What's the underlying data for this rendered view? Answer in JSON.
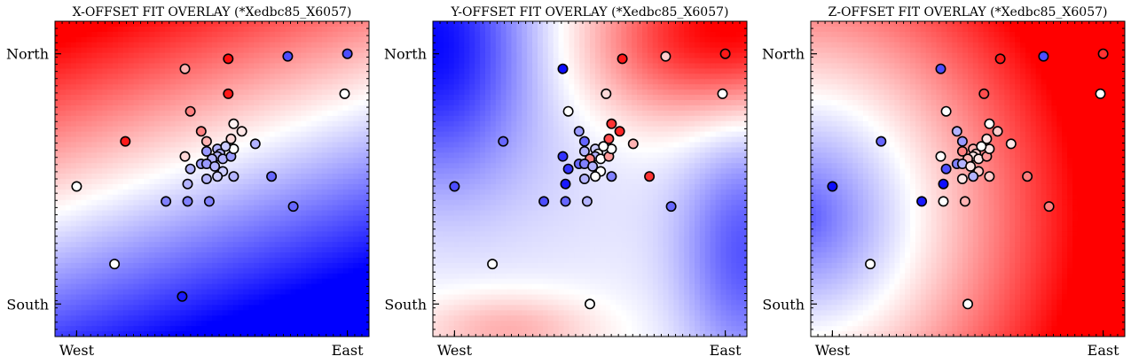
{
  "figure": {
    "titles": [
      "X-OFFSET FIT OVERLAY (*Xedbc85_X6057)",
      "Y-OFFSET FIT OVERLAY (*Xedbc85_X6057)",
      "Z-OFFSET FIT OVERLAY (*Xedbc85_X6057)"
    ]
  },
  "chart_data": [
    {
      "type": "scatter",
      "title": "X-OFFSET FIT OVERLAY (*Xedbc85_X6057)",
      "xlabel": "",
      "ylabel": "",
      "x_ticks": [
        {
          "value": 0.0,
          "label": "West"
        },
        {
          "value": 1.0,
          "label": "East"
        }
      ],
      "y_ticks": [
        {
          "value": 0.0,
          "label": "South"
        },
        {
          "value": 1.0,
          "label": "North"
        }
      ],
      "xlim": [
        -0.08,
        1.08
      ],
      "ylim": [
        -0.13,
        1.13
      ],
      "colormap": [
        "#0000ff",
        "#ffffff",
        "#ff0000"
      ],
      "background_field": {
        "kind": "diagonal",
        "center": 0.7,
        "origin": [
          0.12,
          0.0
        ],
        "axis": [
          -0.35,
          0.9
        ],
        "scale": 0.6,
        "white_band": 0.02
      },
      "points": [
        {
          "x": 0.0,
          "y": 0.47,
          "v": 0.0
        },
        {
          "x": 0.14,
          "y": 0.16,
          "v": 0.0
        },
        {
          "x": 0.18,
          "y": 0.65,
          "v": 0.9
        },
        {
          "x": 0.39,
          "y": 0.03,
          "v": -0.9
        },
        {
          "x": 0.4,
          "y": 0.94,
          "v": 0.3
        },
        {
          "x": 0.56,
          "y": 0.98,
          "v": 0.95
        },
        {
          "x": 0.78,
          "y": 0.99,
          "v": -0.7
        },
        {
          "x": 1.0,
          "y": 1.0,
          "v": -0.7
        },
        {
          "x": 0.99,
          "y": 0.84,
          "v": 0.0
        },
        {
          "x": 0.56,
          "y": 0.84,
          "v": 0.9
        },
        {
          "x": 0.42,
          "y": 0.77,
          "v": 0.5
        },
        {
          "x": 0.46,
          "y": 0.69,
          "v": 0.5
        },
        {
          "x": 0.48,
          "y": 0.65,
          "v": 0.3
        },
        {
          "x": 0.58,
          "y": 0.72,
          "v": 0.05
        },
        {
          "x": 0.61,
          "y": 0.69,
          "v": 0.1
        },
        {
          "x": 0.57,
          "y": 0.66,
          "v": 0.15
        },
        {
          "x": 0.66,
          "y": 0.64,
          "v": -0.3
        },
        {
          "x": 0.4,
          "y": 0.59,
          "v": 0.15
        },
        {
          "x": 0.48,
          "y": 0.61,
          "v": -0.4
        },
        {
          "x": 0.52,
          "y": 0.62,
          "v": -0.3
        },
        {
          "x": 0.53,
          "y": 0.6,
          "v": -0.3
        },
        {
          "x": 0.52,
          "y": 0.59,
          "v": -0.3
        },
        {
          "x": 0.5,
          "y": 0.58,
          "v": -0.3
        },
        {
          "x": 0.54,
          "y": 0.58,
          "v": -0.3
        },
        {
          "x": 0.57,
          "y": 0.59,
          "v": -0.4
        },
        {
          "x": 0.58,
          "y": 0.62,
          "v": 0.0
        },
        {
          "x": 0.55,
          "y": 0.63,
          "v": -0.2
        },
        {
          "x": 0.46,
          "y": 0.56,
          "v": -0.4
        },
        {
          "x": 0.48,
          "y": 0.56,
          "v": -0.4
        },
        {
          "x": 0.42,
          "y": 0.54,
          "v": -0.3
        },
        {
          "x": 0.51,
          "y": 0.55,
          "v": -0.3
        },
        {
          "x": 0.54,
          "y": 0.53,
          "v": -0.2
        },
        {
          "x": 0.58,
          "y": 0.51,
          "v": -0.3
        },
        {
          "x": 0.52,
          "y": 0.51,
          "v": -0.2
        },
        {
          "x": 0.48,
          "y": 0.5,
          "v": -0.3
        },
        {
          "x": 0.41,
          "y": 0.48,
          "v": -0.3
        },
        {
          "x": 0.72,
          "y": 0.51,
          "v": -0.6
        },
        {
          "x": 0.8,
          "y": 0.39,
          "v": -0.6
        },
        {
          "x": 0.33,
          "y": 0.41,
          "v": -0.5
        },
        {
          "x": 0.41,
          "y": 0.41,
          "v": -0.5
        },
        {
          "x": 0.49,
          "y": 0.41,
          "v": -0.5
        }
      ]
    },
    {
      "type": "scatter",
      "title": "Y-OFFSET FIT OVERLAY (*Xedbc85_X6057)",
      "xlabel": "",
      "ylabel": "",
      "x_ticks": [
        {
          "value": 0.0,
          "label": "West"
        },
        {
          "value": 1.0,
          "label": "East"
        }
      ],
      "y_ticks": [
        {
          "value": 0.0,
          "label": "South"
        },
        {
          "value": 1.0,
          "label": "North"
        }
      ],
      "xlim": [
        -0.08,
        1.08
      ],
      "ylim": [
        -0.13,
        1.13
      ],
      "colormap": [
        "#0000ff",
        "#ffffff",
        "#ff0000"
      ],
      "background_field": {
        "kind": "y-offset"
      },
      "points": [
        {
          "x": 0.0,
          "y": 0.47,
          "v": -0.7
        },
        {
          "x": 0.14,
          "y": 0.16,
          "v": 0.0
        },
        {
          "x": 0.18,
          "y": 0.65,
          "v": -0.6
        },
        {
          "x": 0.5,
          "y": 0.0,
          "v": 0.0
        },
        {
          "x": 0.4,
          "y": 0.94,
          "v": -0.95
        },
        {
          "x": 0.62,
          "y": 0.98,
          "v": 0.9
        },
        {
          "x": 0.78,
          "y": 0.99,
          "v": 0.2
        },
        {
          "x": 1.0,
          "y": 1.0,
          "v": 0.9
        },
        {
          "x": 0.99,
          "y": 0.84,
          "v": 0.0
        },
        {
          "x": 0.56,
          "y": 0.84,
          "v": 0.15
        },
        {
          "x": 0.42,
          "y": 0.77,
          "v": 0.0
        },
        {
          "x": 0.46,
          "y": 0.69,
          "v": -0.4
        },
        {
          "x": 0.48,
          "y": 0.65,
          "v": -0.6
        },
        {
          "x": 0.58,
          "y": 0.72,
          "v": 0.8
        },
        {
          "x": 0.61,
          "y": 0.69,
          "v": 0.85
        },
        {
          "x": 0.57,
          "y": 0.66,
          "v": 0.7
        },
        {
          "x": 0.66,
          "y": 0.64,
          "v": 0.3
        },
        {
          "x": 0.4,
          "y": 0.59,
          "v": -0.8
        },
        {
          "x": 0.48,
          "y": 0.61,
          "v": -0.3
        },
        {
          "x": 0.52,
          "y": 0.62,
          "v": -0.2
        },
        {
          "x": 0.53,
          "y": 0.6,
          "v": 0.0
        },
        {
          "x": 0.52,
          "y": 0.59,
          "v": -0.3
        },
        {
          "x": 0.5,
          "y": 0.58,
          "v": 0.5
        },
        {
          "x": 0.54,
          "y": 0.58,
          "v": 0.0
        },
        {
          "x": 0.57,
          "y": 0.59,
          "v": 0.4
        },
        {
          "x": 0.58,
          "y": 0.62,
          "v": 0.0
        },
        {
          "x": 0.55,
          "y": 0.63,
          "v": 0.0
        },
        {
          "x": 0.46,
          "y": 0.56,
          "v": -0.6
        },
        {
          "x": 0.48,
          "y": 0.56,
          "v": -0.5
        },
        {
          "x": 0.42,
          "y": 0.54,
          "v": -0.8
        },
        {
          "x": 0.51,
          "y": 0.55,
          "v": -0.3
        },
        {
          "x": 0.54,
          "y": 0.53,
          "v": 0.0
        },
        {
          "x": 0.58,
          "y": 0.51,
          "v": -0.5
        },
        {
          "x": 0.52,
          "y": 0.51,
          "v": 0.0
        },
        {
          "x": 0.48,
          "y": 0.5,
          "v": -0.3
        },
        {
          "x": 0.41,
          "y": 0.48,
          "v": -0.9
        },
        {
          "x": 0.72,
          "y": 0.51,
          "v": 0.8
        },
        {
          "x": 0.8,
          "y": 0.39,
          "v": -0.6
        },
        {
          "x": 0.33,
          "y": 0.41,
          "v": -0.7
        },
        {
          "x": 0.41,
          "y": 0.41,
          "v": -0.6
        },
        {
          "x": 0.49,
          "y": 0.41,
          "v": -0.3
        }
      ]
    },
    {
      "type": "scatter",
      "title": "Z-OFFSET FIT OVERLAY (*Xedbc85_X6057)",
      "xlabel": "",
      "ylabel": "",
      "x_ticks": [
        {
          "value": 0.0,
          "label": "West"
        },
        {
          "value": 1.0,
          "label": "East"
        }
      ],
      "y_ticks": [
        {
          "value": 0.0,
          "label": "South"
        },
        {
          "value": 1.0,
          "label": "North"
        }
      ],
      "xlim": [
        -0.08,
        1.08
      ],
      "ylim": [
        -0.13,
        1.13
      ],
      "colormap": [
        "#0000ff",
        "#ffffff",
        "#ff0000"
      ],
      "background_field": {
        "kind": "radial",
        "center": [
          -0.1,
          0.35
        ],
        "radius": 0.4,
        "scale": 0.6
      },
      "points": [
        {
          "x": 0.0,
          "y": 0.47,
          "v": -0.95
        },
        {
          "x": 0.14,
          "y": 0.16,
          "v": 0.0
        },
        {
          "x": 0.18,
          "y": 0.65,
          "v": -0.6
        },
        {
          "x": 0.5,
          "y": 0.0,
          "v": 0.0
        },
        {
          "x": 0.4,
          "y": 0.94,
          "v": -0.7
        },
        {
          "x": 0.62,
          "y": 0.98,
          "v": 0.9
        },
        {
          "x": 0.78,
          "y": 0.99,
          "v": -0.7
        },
        {
          "x": 1.0,
          "y": 1.0,
          "v": 0.8
        },
        {
          "x": 0.99,
          "y": 0.84,
          "v": 0.0
        },
        {
          "x": 0.56,
          "y": 0.84,
          "v": 0.7
        },
        {
          "x": 0.42,
          "y": 0.77,
          "v": 0.0
        },
        {
          "x": 0.46,
          "y": 0.69,
          "v": -0.3
        },
        {
          "x": 0.48,
          "y": 0.65,
          "v": -0.4
        },
        {
          "x": 0.58,
          "y": 0.72,
          "v": 0.0
        },
        {
          "x": 0.61,
          "y": 0.69,
          "v": 0.2
        },
        {
          "x": 0.57,
          "y": 0.66,
          "v": 0.1
        },
        {
          "x": 0.66,
          "y": 0.64,
          "v": 0.1
        },
        {
          "x": 0.4,
          "y": 0.59,
          "v": 0.0
        },
        {
          "x": 0.48,
          "y": 0.61,
          "v": 0.5
        },
        {
          "x": 0.52,
          "y": 0.62,
          "v": 0.3
        },
        {
          "x": 0.53,
          "y": 0.6,
          "v": 0.2
        },
        {
          "x": 0.52,
          "y": 0.59,
          "v": 0.1
        },
        {
          "x": 0.5,
          "y": 0.58,
          "v": 0.3
        },
        {
          "x": 0.54,
          "y": 0.58,
          "v": 0.1
        },
        {
          "x": 0.57,
          "y": 0.59,
          "v": 0.4
        },
        {
          "x": 0.58,
          "y": 0.62,
          "v": 0.1
        },
        {
          "x": 0.55,
          "y": 0.63,
          "v": 0.0
        },
        {
          "x": 0.46,
          "y": 0.56,
          "v": -0.5
        },
        {
          "x": 0.48,
          "y": 0.56,
          "v": -0.3
        },
        {
          "x": 0.42,
          "y": 0.54,
          "v": -0.7
        },
        {
          "x": 0.51,
          "y": 0.55,
          "v": 0.1
        },
        {
          "x": 0.54,
          "y": 0.53,
          "v": 0.2
        },
        {
          "x": 0.58,
          "y": 0.51,
          "v": 0.2
        },
        {
          "x": 0.52,
          "y": 0.51,
          "v": -0.3
        },
        {
          "x": 0.48,
          "y": 0.5,
          "v": 0.1
        },
        {
          "x": 0.41,
          "y": 0.48,
          "v": -0.95
        },
        {
          "x": 0.72,
          "y": 0.51,
          "v": 0.5
        },
        {
          "x": 0.8,
          "y": 0.39,
          "v": 0.5
        },
        {
          "x": 0.33,
          "y": 0.41,
          "v": -0.9
        },
        {
          "x": 0.41,
          "y": 0.41,
          "v": 0.0
        },
        {
          "x": 0.49,
          "y": 0.41,
          "v": 0.3
        }
      ]
    }
  ]
}
